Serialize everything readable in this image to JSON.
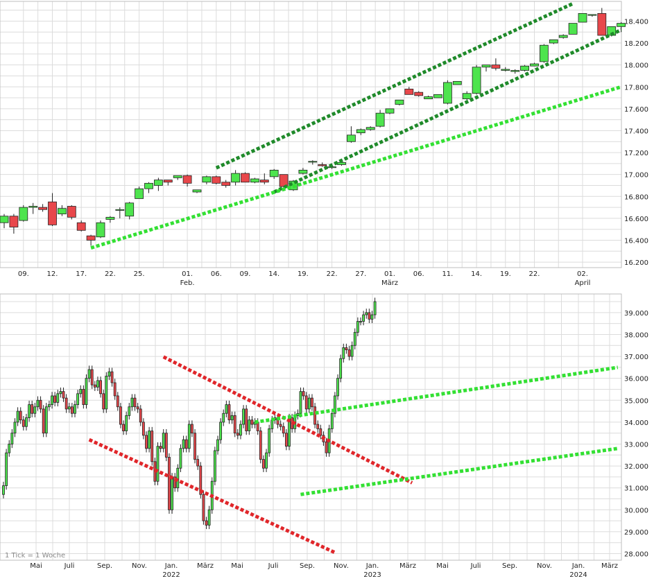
{
  "colors": {
    "up": "#4ee44e",
    "down": "#e8474b",
    "dark_trend": "#1f8a2a",
    "light_trend": "#33e033",
    "red_trend": "#e0262a",
    "grid": "#dcdcdc"
  },
  "chart_data": [
    {
      "type": "candlestick",
      "name": "",
      "title": "",
      "period": "daily",
      "y_ticks": [
        "16.200",
        "16.400",
        "16.600",
        "16.800",
        "17.000",
        "17.200",
        "17.400",
        "17.600",
        "17.800",
        "18.000",
        "18.200",
        "18.400"
      ],
      "ylim": [
        16150,
        18580
      ],
      "x_ticks": [
        {
          "i": 2,
          "label": "09."
        },
        {
          "i": 5,
          "label": "12."
        },
        {
          "i": 8,
          "label": "17."
        },
        {
          "i": 11,
          "label": "22."
        },
        {
          "i": 14,
          "label": "25."
        },
        {
          "i": 19,
          "label": "01.",
          "month": "Feb."
        },
        {
          "i": 22,
          "label": "06."
        },
        {
          "i": 25,
          "label": "09."
        },
        {
          "i": 28,
          "label": "14."
        },
        {
          "i": 31,
          "label": "19."
        },
        {
          "i": 34,
          "label": "22."
        },
        {
          "i": 37,
          "label": "27."
        },
        {
          "i": 40,
          "label": "01.",
          "month": "März"
        },
        {
          "i": 43,
          "label": "06."
        },
        {
          "i": 46,
          "label": "11."
        },
        {
          "i": 49,
          "label": "14."
        },
        {
          "i": 52,
          "label": "19."
        },
        {
          "i": 55,
          "label": "22."
        },
        {
          "i": 60,
          "label": "02.",
          "month": "April"
        }
      ],
      "candles": [
        [
          16560,
          16640,
          16510,
          16620
        ],
        [
          16620,
          16640,
          16460,
          16520
        ],
        [
          16580,
          16720,
          16570,
          16700
        ],
        [
          16700,
          16740,
          16640,
          16710
        ],
        [
          16700,
          16730,
          16660,
          16680
        ],
        [
          16750,
          16830,
          16530,
          16540
        ],
        [
          16640,
          16720,
          16620,
          16690
        ],
        [
          16710,
          16720,
          16590,
          16610
        ],
        [
          16560,
          16580,
          16480,
          16490
        ],
        [
          16440,
          16450,
          16350,
          16400
        ],
        [
          16430,
          16580,
          16420,
          16560
        ],
        [
          16590,
          16620,
          16560,
          16610
        ],
        [
          16680,
          16700,
          16600,
          16680
        ],
        [
          16620,
          16750,
          16590,
          16740
        ],
        [
          16780,
          16890,
          16780,
          16870
        ],
        [
          16870,
          16930,
          16830,
          16920
        ],
        [
          16900,
          16970,
          16850,
          16950
        ],
        [
          16950,
          16950,
          16900,
          16930
        ],
        [
          16970,
          16990,
          16950,
          16990
        ],
        [
          16990,
          17000,
          16890,
          16920
        ],
        [
          16840,
          16860,
          16830,
          16860
        ],
        [
          16930,
          16990,
          16910,
          16980
        ],
        [
          16980,
          16990,
          16910,
          16920
        ],
        [
          16930,
          16950,
          16880,
          16900
        ],
        [
          16930,
          17040,
          16900,
          17010
        ],
        [
          17010,
          17020,
          16930,
          16930
        ],
        [
          16930,
          16970,
          16920,
          16960
        ],
        [
          16950,
          17010,
          16910,
          16930
        ],
        [
          16980,
          17050,
          16960,
          17040
        ],
        [
          17000,
          17000,
          16860,
          16890
        ],
        [
          16860,
          16950,
          16850,
          16940
        ],
        [
          17010,
          17060,
          17000,
          17040
        ],
        [
          17120,
          17130,
          17090,
          17120
        ],
        [
          17090,
          17110,
          17070,
          17080
        ],
        [
          17070,
          17100,
          17050,
          17070
        ],
        [
          17090,
          17120,
          17080,
          17110
        ],
        [
          17300,
          17440,
          17290,
          17360
        ],
        [
          17380,
          17420,
          17360,
          17410
        ],
        [
          17410,
          17440,
          17400,
          17430
        ],
        [
          17440,
          17590,
          17430,
          17560
        ],
        [
          17560,
          17600,
          17550,
          17600
        ],
        [
          17640,
          17680,
          17630,
          17680
        ],
        [
          17780,
          17800,
          17730,
          17730
        ],
        [
          17750,
          17760,
          17710,
          17720
        ],
        [
          17690,
          17720,
          17690,
          17710
        ],
        [
          17700,
          17730,
          17700,
          17730
        ],
        [
          17650,
          17860,
          17640,
          17840
        ],
        [
          17820,
          17850,
          17830,
          17850
        ],
        [
          17690,
          17760,
          17680,
          17740
        ],
        [
          17740,
          18000,
          17730,
          17980
        ],
        [
          17980,
          18000,
          17940,
          18000
        ],
        [
          18000,
          18060,
          17950,
          17970
        ],
        [
          17950,
          17980,
          17940,
          17960
        ],
        [
          17940,
          17960,
          17920,
          17950
        ],
        [
          17950,
          18000,
          17940,
          17990
        ],
        [
          17990,
          18020,
          17990,
          18010
        ],
        [
          18030,
          18190,
          18020,
          18180
        ],
        [
          18200,
          18230,
          18190,
          18230
        ],
        [
          18250,
          18280,
          18240,
          18270
        ],
        [
          18280,
          18380,
          18280,
          18380
        ],
        [
          18390,
          18460,
          18390,
          18470
        ],
        [
          18460,
          18460,
          18440,
          18460
        ],
        [
          18470,
          18520,
          18270,
          18270
        ],
        [
          18270,
          18350,
          18260,
          18350
        ],
        [
          18350,
          18390,
          18300,
          18380
        ]
      ],
      "trend_lines": [
        {
          "color": "dark",
          "from": [
            22,
            17060
          ],
          "to": [
            59,
            18560
          ]
        },
        {
          "color": "dark",
          "from": [
            28,
            16840
          ],
          "to": [
            64,
            18320
          ]
        },
        {
          "color": "light",
          "from": [
            9,
            16330
          ],
          "to": [
            64,
            17800
          ]
        }
      ]
    },
    {
      "type": "candlestick",
      "name": "",
      "title": "",
      "period": "weekly",
      "note": "1 Tick = 1 Woche",
      "y_ticks": [
        "28.000",
        "29.000",
        "30.000",
        "31.000",
        "32.000",
        "33.000",
        "34.000",
        "35.000",
        "36.000",
        "37.000",
        "38.000",
        "39.000"
      ],
      "ylim": [
        27700,
        39850
      ],
      "x_ticks": [
        {
          "label": "Mai"
        },
        {
          "label": "Juli"
        },
        {
          "label": "Sep."
        },
        {
          "label": "Nov."
        },
        {
          "label": "Jan.",
          "year": "2022"
        },
        {
          "label": "März"
        },
        {
          "label": "Mai"
        },
        {
          "label": "Juli"
        },
        {
          "label": "Sep."
        },
        {
          "label": "Nov."
        },
        {
          "label": "Jan.",
          "year": "2023"
        },
        {
          "label": "März"
        },
        {
          "label": "Mai"
        },
        {
          "label": "Juli"
        },
        {
          "label": "Sep."
        },
        {
          "label": "Nov."
        },
        {
          "label": "Jan.",
          "year": "2024"
        },
        {
          "label": "März"
        }
      ],
      "closes": [
        31100,
        32600,
        33000,
        33500,
        34000,
        34500,
        34100,
        33800,
        34200,
        34800,
        34400,
        34700,
        35000,
        34600,
        33500,
        34700,
        34800,
        35200,
        34900,
        35300,
        35400,
        35100,
        34600,
        34700,
        34400,
        34800,
        35300,
        35500,
        34800,
        36000,
        36400,
        35700,
        35600,
        35900,
        35300,
        34600,
        36100,
        36300,
        35800,
        35200,
        34700,
        33900,
        33600,
        34300,
        34700,
        35100,
        34700,
        34600,
        34000,
        33400,
        32800,
        33600,
        32200,
        31300,
        32900,
        32800,
        33500,
        32400,
        30000,
        31500,
        31000,
        31900,
        32800,
        33200,
        32800,
        33900,
        33500,
        32300,
        32000,
        30700,
        29500,
        29300,
        30000,
        31300,
        32700,
        33200,
        34000,
        34400,
        34800,
        34100,
        34300,
        33500,
        33400,
        33900,
        34600,
        33600,
        34100,
        33900,
        34000,
        33600,
        32300,
        31900,
        32600,
        33700,
        34100,
        34200,
        33900,
        33800,
        33500,
        32900,
        34200,
        33700,
        34300,
        34400,
        35400,
        35200,
        34600,
        35100,
        34700,
        33900,
        33700,
        33400,
        33100,
        32600,
        33700,
        34400,
        35200,
        36000,
        36900,
        37400,
        37300,
        37000,
        37500,
        38100,
        38600,
        38600,
        38900,
        39000,
        38700,
        38900,
        39500
      ],
      "trend_lines": [
        {
          "color": "red",
          "from": [
            56,
            36980
          ],
          "to": [
            143,
            31230
          ]
        },
        {
          "color": "red",
          "from": [
            30,
            33200
          ],
          "to": [
            116,
            28050
          ]
        },
        {
          "color": "light",
          "from": [
            88,
            34000
          ],
          "to": [
            215,
            36500
          ]
        },
        {
          "color": "light",
          "from": [
            104,
            30700
          ],
          "to": [
            215,
            32800
          ]
        }
      ]
    }
  ]
}
